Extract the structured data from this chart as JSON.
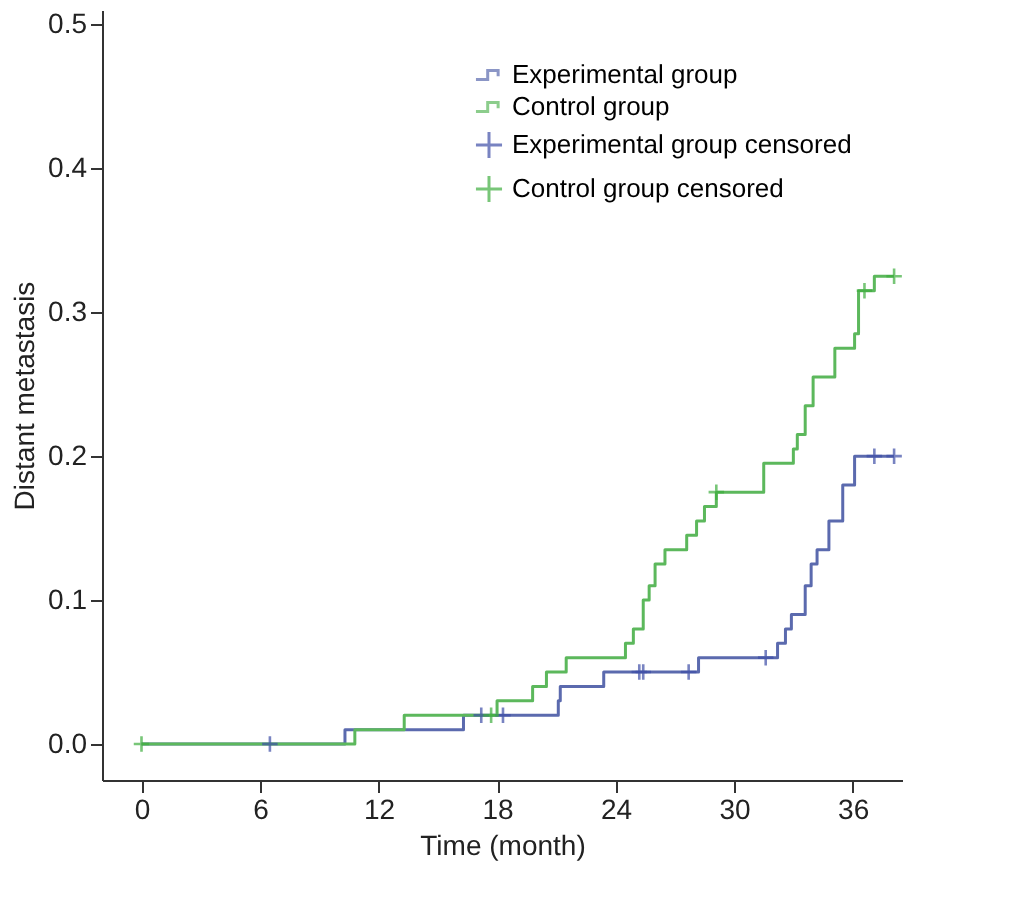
{
  "chart_data": {
    "type": "step",
    "xlabel": "Time (month)",
    "ylabel": "Distant metastasis",
    "xlim": [
      -2,
      38.5
    ],
    "ylim": [
      -0.025,
      0.51
    ],
    "xticks": [
      0,
      6,
      12,
      18,
      24,
      30,
      36
    ],
    "yticks": [
      {
        "value": 0,
        "label": "0.0"
      },
      0.1,
      0.2,
      0.3,
      0.4,
      0.5
    ],
    "grid": false,
    "legend": "top right",
    "series": [
      {
        "name": "Experimental group",
        "color": "#5b6aae",
        "x": [
          0,
          10.3,
          16.3,
          21.1,
          21.2,
          23.4,
          28.2,
          32.2,
          32.6,
          32.9,
          33.6,
          33.9,
          34.2,
          34.8,
          35.5,
          36.1,
          38.1
        ],
        "values": [
          0,
          0.01,
          0.02,
          0.03,
          0.04,
          0.05,
          0.06,
          0.07,
          0.08,
          0.09,
          0.11,
          0.125,
          0.135,
          0.155,
          0.18,
          0.2,
          0.2
        ]
      },
      {
        "name": "Control group",
        "color": "#5cb85c",
        "x": [
          0,
          10.8,
          13.3,
          18.0,
          19.8,
          20.5,
          21.5,
          24.5,
          24.9,
          25.4,
          25.7,
          26.0,
          26.5,
          27.6,
          28.1,
          28.5,
          29.1,
          31.5,
          33.0,
          33.2,
          33.6,
          34.0,
          35.1,
          36.1,
          36.3,
          37.1,
          38.1
        ],
        "values": [
          0,
          0.01,
          0.02,
          0.03,
          0.04,
          0.05,
          0.06,
          0.07,
          0.08,
          0.1,
          0.11,
          0.125,
          0.135,
          0.145,
          0.155,
          0.165,
          0.175,
          0.195,
          0.205,
          0.215,
          0.235,
          0.255,
          0.275,
          0.285,
          0.315,
          0.325,
          0.325
        ]
      },
      {
        "name": "Experimental group censored",
        "type": "scatter",
        "marker": "cross",
        "color": "#3f4fa8",
        "x": [
          6.5,
          17.2,
          18.3,
          25.2,
          25.4,
          27.7,
          31.6,
          37.1,
          38.1
        ],
        "values": [
          0,
          0.02,
          0.02,
          0.05,
          0.05,
          0.05,
          0.06,
          0.2,
          0.2
        ]
      },
      {
        "name": "Control group censored",
        "type": "scatter",
        "marker": "cross",
        "color": "#3fae3f",
        "x": [
          0,
          17.7,
          29.1,
          36.6,
          38.1
        ],
        "values": [
          0,
          0.02,
          0.175,
          0.315,
          0.325
        ]
      }
    ]
  }
}
